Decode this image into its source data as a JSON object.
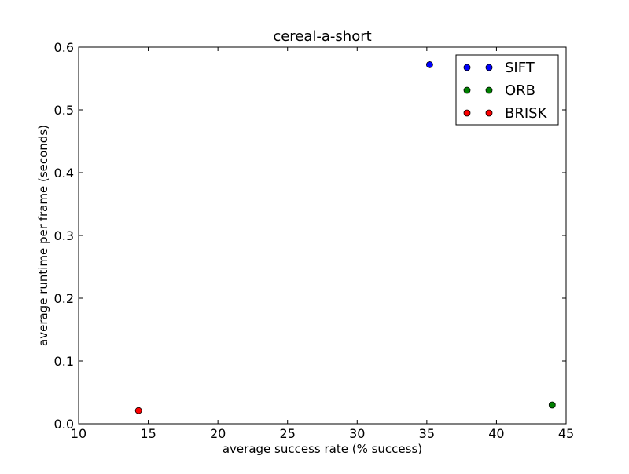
{
  "chart_data": {
    "type": "scatter",
    "title": "cereal-a-short",
    "xlabel": "average success rate (% success)",
    "ylabel": "average runtime per frame (seconds)",
    "xlim": [
      10,
      45
    ],
    "ylim": [
      0.0,
      0.6
    ],
    "xticks": [
      "10",
      "15",
      "20",
      "25",
      "30",
      "35",
      "40",
      "45"
    ],
    "yticks": [
      "0.0",
      "0.1",
      "0.2",
      "0.3",
      "0.4",
      "0.5",
      "0.6"
    ],
    "grid": false,
    "legend_position": "top-right",
    "series": [
      {
        "name": "SIFT",
        "color": "#0000ff",
        "points": [
          {
            "x": 35.2,
            "y": 0.572
          }
        ]
      },
      {
        "name": "ORB",
        "color": "#008000",
        "points": [
          {
            "x": 44.0,
            "y": 0.03
          }
        ]
      },
      {
        "name": "BRISK",
        "color": "#ff0000",
        "points": [
          {
            "x": 14.3,
            "y": 0.021
          }
        ]
      }
    ]
  }
}
